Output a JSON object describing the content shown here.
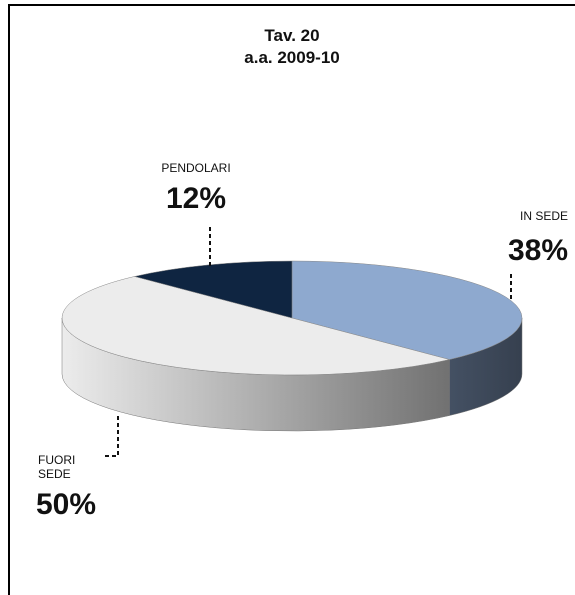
{
  "chart_data": {
    "type": "pie3d",
    "title": [
      "Tav. 20",
      "a.a. 2009-10"
    ],
    "categories": [
      "IN SEDE",
      "FUORI SEDE",
      "PENDOLARI"
    ],
    "values": [
      38,
      50,
      12
    ],
    "value_labels": [
      "38%",
      "50%",
      "12%"
    ],
    "colors": [
      "#8ea9cf",
      "#ececec",
      "#0f2541"
    ]
  }
}
